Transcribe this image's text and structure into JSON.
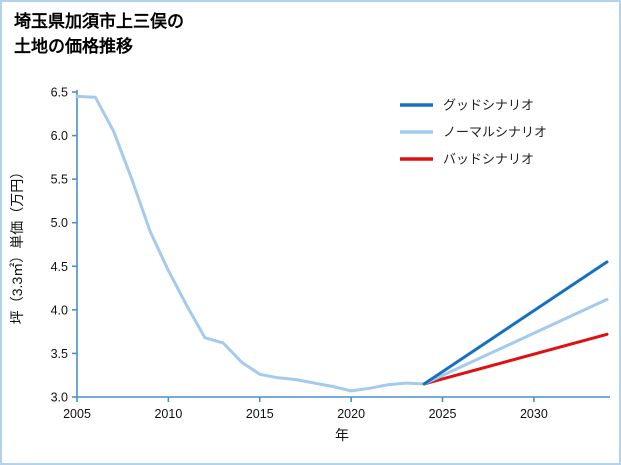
{
  "title": {
    "line1": "埼玉県加須市上三俣の",
    "line2": "土地の価格推移"
  },
  "colors": {
    "axis": "#4a8fd4",
    "border": "#b3d3ec",
    "good": "#1670c0",
    "normal": "#a4cbee",
    "bad": "#e01010"
  },
  "chart_data": {
    "type": "line",
    "title": "埼玉県加須市上三俣の土地の価格推移",
    "xlabel": "年",
    "ylabel": "坪（3.3㎡）単価（万円）",
    "xlim": [
      2005,
      2034
    ],
    "ylim": [
      3.0,
      6.5
    ],
    "grid": false,
    "legend_position": "upper-right",
    "x_ticks": [
      {
        "value": 2005,
        "label": "2005"
      },
      {
        "value": 2010,
        "label": "2010"
      },
      {
        "value": 2015,
        "label": "2015"
      },
      {
        "value": 2020,
        "label": "2020"
      },
      {
        "value": 2025,
        "label": "2025"
      },
      {
        "value": 2030,
        "label": "2030"
      }
    ],
    "y_ticks": [
      {
        "value": 3.0,
        "label": "3.0"
      },
      {
        "value": 3.5,
        "label": "3.5"
      },
      {
        "value": 4.0,
        "label": "4.0"
      },
      {
        "value": 4.5,
        "label": "4.5"
      },
      {
        "value": 5.0,
        "label": "5.0"
      },
      {
        "value": 5.5,
        "label": "5.5"
      },
      {
        "value": 6.0,
        "label": "6.0"
      },
      {
        "value": 6.5,
        "label": "6.5"
      }
    ],
    "legend": [
      {
        "id": "good",
        "label": "グッドシナリオ",
        "color": "#1670c0"
      },
      {
        "id": "normal",
        "label": "ノーマルシナリオ",
        "color": "#a4cbee"
      },
      {
        "id": "bad",
        "label": "バッドシナリオ",
        "color": "#e01010"
      }
    ],
    "series": [
      {
        "id": "historical",
        "color": "#a4cbee",
        "x": [
          2005,
          2006,
          2007,
          2008,
          2009,
          2010,
          2011,
          2012,
          2013,
          2014,
          2015,
          2016,
          2017,
          2018,
          2019,
          2020,
          2021,
          2022,
          2023,
          2024
        ],
        "values": [
          6.45,
          6.44,
          6.05,
          5.5,
          4.9,
          4.45,
          4.05,
          3.68,
          3.62,
          3.4,
          3.26,
          3.22,
          3.2,
          3.16,
          3.12,
          3.07,
          3.1,
          3.14,
          3.16,
          3.15
        ]
      },
      {
        "id": "bad",
        "color": "#e01010",
        "x": [
          2024,
          2034
        ],
        "values": [
          3.15,
          3.72
        ]
      },
      {
        "id": "normal",
        "color": "#a4cbee",
        "x": [
          2024,
          2034
        ],
        "values": [
          3.15,
          4.12
        ]
      },
      {
        "id": "good",
        "color": "#1670c0",
        "x": [
          2024,
          2034
        ],
        "values": [
          3.15,
          4.55
        ]
      }
    ]
  }
}
